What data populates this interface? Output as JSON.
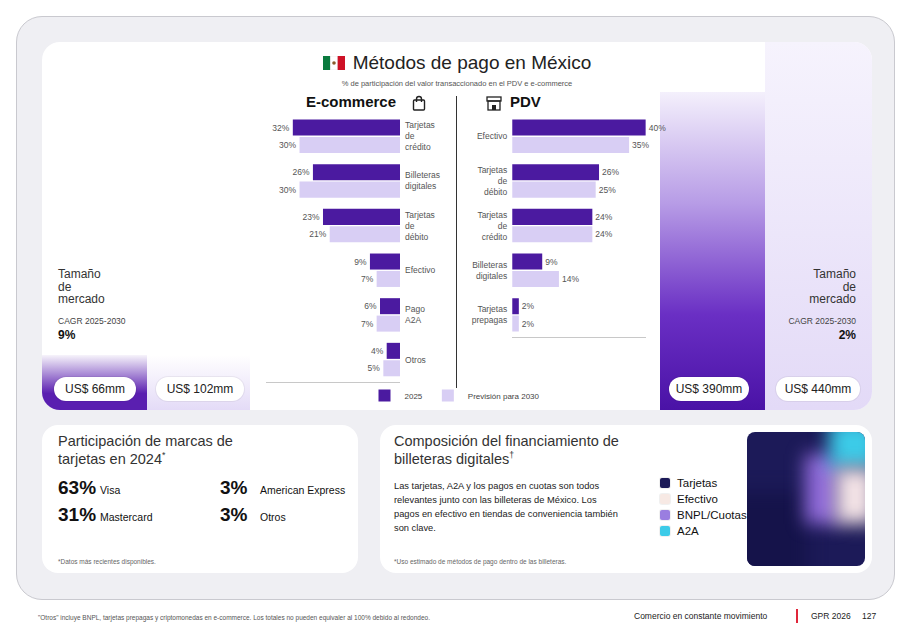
{
  "title": "Métodos de pago en México",
  "subtitle": "% de participación del valor transaccionado en el PDV e e-commerce",
  "chart_data": [
    {
      "type": "bar",
      "title": "E-commerce",
      "orientation": "horizontal",
      "categories": [
        "Tarjetas de crédito",
        "Billeteras digitales",
        "Tarjetas de débito",
        "Efectivo",
        "Pago A2A",
        "Otros"
      ],
      "series": [
        {
          "name": "2025",
          "color": "#4b1aa0",
          "values": [
            32,
            26,
            23,
            9,
            6,
            4
          ],
          "value_labels": [
            "32%",
            "26%",
            "23%",
            "9%",
            "6%",
            "4%"
          ]
        },
        {
          "name": "Previsión para 2030",
          "color": "#d8cef4",
          "values": [
            30,
            30,
            21,
            7,
            7,
            5
          ],
          "value_labels": [
            "30%",
            "30%",
            "21%",
            "7%",
            "7%",
            "5%"
          ]
        }
      ],
      "xlim": [
        40,
        0
      ],
      "data_labels": true,
      "tick_labels": "y",
      "grid": false,
      "legend": "bottom"
    },
    {
      "type": "bar",
      "title": "PDV",
      "orientation": "horizontal",
      "categories": [
        "Efectivo",
        "Tarjetas de débito",
        "Tarjetas de crédito",
        "Billeteras digitales",
        "Tarjetas prepagas"
      ],
      "series": [
        {
          "name": "2025",
          "color": "#4b1aa0",
          "values": [
            40,
            26,
            24,
            9,
            2
          ],
          "value_labels": [
            "40%",
            "26%",
            "24%",
            "9%",
            "2%"
          ]
        },
        {
          "name": "Previsión para 2030",
          "color": "#d8cef4",
          "values": [
            35,
            25,
            24,
            14,
            2
          ],
          "value_labels": [
            "35%",
            "25%",
            "24%",
            "14%",
            "2%"
          ]
        }
      ],
      "xlim": [
        0,
        40
      ],
      "data_labels": true,
      "tick_labels": "y",
      "grid": false,
      "legend": "bottom"
    }
  ],
  "market_size": [
    {
      "title": "Tamaño de mercado",
      "cagr_label": "CAGR 2025-2030",
      "cagr": "9%",
      "values": [
        "US$ 66mm",
        "US$ 102mm"
      ]
    },
    {
      "title": "Tamaño de mercado",
      "cagr_label": "CAGR 2025-2030",
      "cagr": "2%",
      "values": [
        "US$ 390mm",
        "US$ 440mm"
      ]
    }
  ],
  "card_brands": {
    "title": "Participación de marcas de tarjetas en 2024*",
    "items": [
      {
        "share": "63%",
        "name": "Visa"
      },
      {
        "share": "3%",
        "name": "American Express"
      },
      {
        "share": "31%",
        "name": "Mastercard"
      },
      {
        "share": "3%",
        "name": "Otros"
      }
    ],
    "footnote": "*Datos más recientes disponibles."
  },
  "wallet_financing": {
    "title": "Composición del financiamiento de billeteras digitales†",
    "text": "Las tarjetas, A2A y los pagos en cuotas son todos relevantes junto con las billeteras de México. Los pagos en efectivo en tiendas de conveniencia también son clave.",
    "items": [
      {
        "name": "Tarjetas",
        "color": "#1c1a58"
      },
      {
        "name": "Efectivo",
        "color": "#f7e9e4"
      },
      {
        "name": "BNPL/Cuotas",
        "color": "#9a7ee0"
      },
      {
        "name": "A2A",
        "color": "#3ccbe8"
      }
    ],
    "footnote": "*Uso estimado de métodos de pago dentro de las billeteras."
  },
  "footnote": "\"Otros\" incluye BNPL, tarjetas prepagas y criptomonedas en e-commerce. Los totales no pueden equivaler al 100% debido al redondeo.",
  "footer": {
    "section": "Comercio en constante movimiento",
    "report": "GPR 2026",
    "page": "127"
  }
}
